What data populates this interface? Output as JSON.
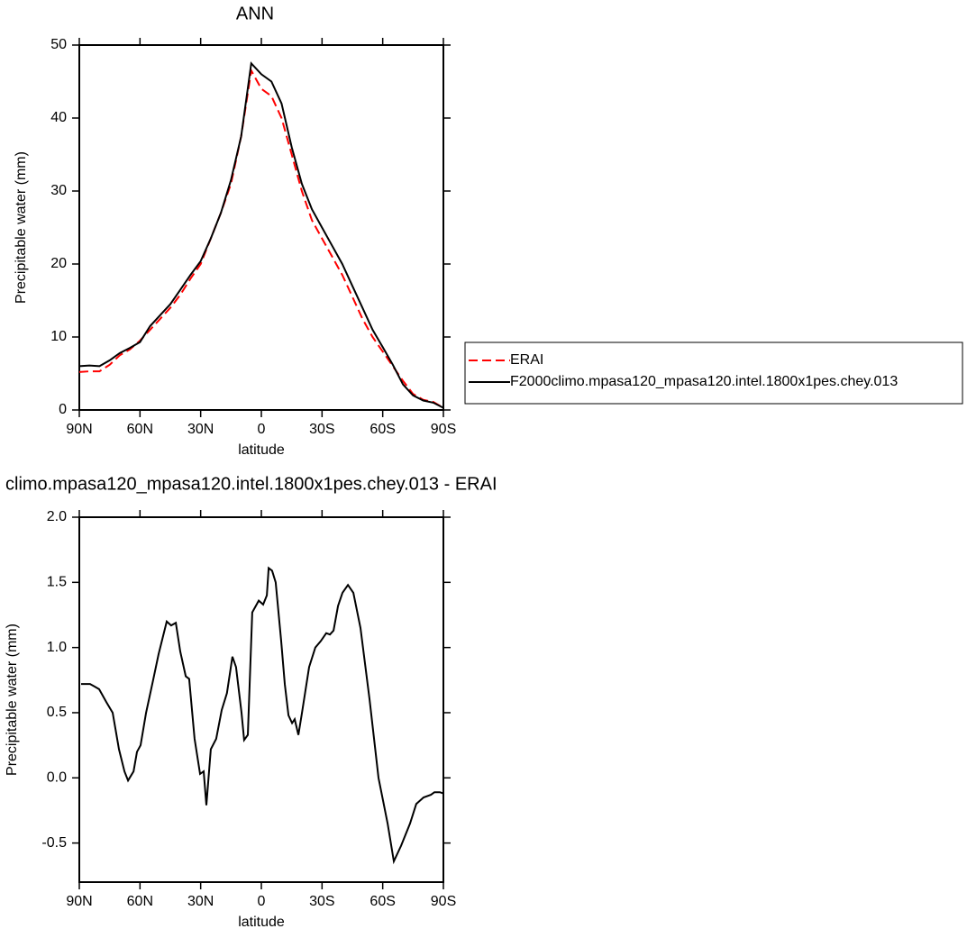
{
  "chart_data": [
    {
      "type": "line",
      "title": "ANN",
      "x_label": "latitude",
      "y_label": "Precipitable water (mm)",
      "x": [
        90,
        85,
        80,
        75,
        70,
        65,
        60,
        55,
        50,
        45,
        40,
        35,
        30,
        25,
        20,
        15,
        10,
        5,
        0,
        -5,
        -10,
        -15,
        -20,
        -25,
        -30,
        -35,
        -40,
        -45,
        -50,
        -55,
        -60,
        -65,
        -70,
        -75,
        -80,
        -85,
        -90
      ],
      "series": [
        {
          "name": "ERAI",
          "color": "#ff0000",
          "dash": true,
          "values": [
            5.2,
            5.3,
            5.3,
            6.2,
            7.5,
            8.3,
            9.5,
            11,
            12.5,
            14,
            15.8,
            18,
            20,
            23.5,
            27,
            31,
            37.5,
            46.5,
            44,
            43,
            40,
            35,
            30,
            26,
            23.5,
            21,
            18.5,
            15.5,
            12.5,
            10,
            8,
            6,
            4,
            2.2,
            1.4,
            1.1,
            0.3
          ]
        },
        {
          "name": "F2000climo.mpasa120_mpasa120.intel.1800x1pes.chey.013",
          "color": "#000000",
          "dash": false,
          "values": [
            6.0,
            6.1,
            6.0,
            6.8,
            7.8,
            8.5,
            9.3,
            11.5,
            13,
            14.5,
            16.5,
            18.5,
            20.4,
            23.5,
            27,
            31.5,
            37.5,
            47.5,
            46,
            45,
            42,
            36,
            31,
            27.5,
            25,
            22.5,
            20,
            17,
            14,
            11,
            8.6,
            6.2,
            3.5,
            2,
            1.3,
            1.0,
            0.3
          ]
        }
      ],
      "xlim": [
        90,
        -90
      ],
      "xticks": [
        {
          "value": 90,
          "label": "90N"
        },
        {
          "value": 60,
          "label": "60N"
        },
        {
          "value": 30,
          "label": "30N"
        },
        0,
        {
          "value": -30,
          "label": "30S"
        },
        {
          "value": -60,
          "label": "60S"
        },
        {
          "value": -90,
          "label": "90S"
        }
      ],
      "ylim": [
        0,
        50
      ],
      "yticks": [
        0,
        10,
        20,
        30,
        40,
        50
      ],
      "legend": "right"
    },
    {
      "type": "line",
      "title": "climo.mpasa120_mpasa120.intel.1800x1pes.chey.013 - ERAI",
      "x_label": "latitude",
      "y_label": "Precipitable water (mm)",
      "x": [
        89.1,
        84.7,
        82.4,
        80.2,
        76.6,
        73.5,
        72.2,
        70.4,
        67.7,
        65.9,
        63.2,
        61.5,
        59.7,
        57.0,
        53.5,
        50.8,
        46.8,
        44.6,
        42.3,
        40.1,
        37.4,
        35.7,
        33.0,
        30.3,
        28.5,
        27.2,
        25.0,
        22.3,
        19.6,
        17.0,
        14.3,
        12.5,
        9.8,
        8.5,
        6.7,
        4.5,
        1.3,
        -0.9,
        -2.7,
        -3.6,
        -5.3,
        -7.1,
        -9.8,
        -11.6,
        -13.4,
        -15.2,
        -16.5,
        -18.3,
        -20.1,
        -23.6,
        -26.7,
        -29.4,
        -32.1,
        -33.9,
        -35.7,
        -37.9,
        -40.1,
        -42.8,
        -45.5,
        -49.0,
        -53.5,
        -57.9,
        -62.4,
        -65.5,
        -69.1,
        -73.5,
        -76.6,
        -80.2,
        -83.8,
        -85.6,
        -88.2,
        -90.0
      ],
      "values": [
        0.72,
        0.72,
        0.7,
        0.68,
        0.58,
        0.5,
        0.38,
        0.22,
        0.05,
        -0.02,
        0.05,
        0.2,
        0.25,
        0.5,
        0.75,
        0.95,
        1.2,
        1.17,
        1.19,
        0.97,
        0.78,
        0.76,
        0.3,
        0.03,
        0.05,
        -0.21,
        0.22,
        0.3,
        0.52,
        0.65,
        0.93,
        0.85,
        0.5,
        0.29,
        0.33,
        1.27,
        1.36,
        1.33,
        1.4,
        1.61,
        1.59,
        1.5,
        1.05,
        0.72,
        0.48,
        0.42,
        0.45,
        0.33,
        0.5,
        0.85,
        1.0,
        1.05,
        1.11,
        1.1,
        1.13,
        1.32,
        1.42,
        1.48,
        1.42,
        1.15,
        0.6,
        0.0,
        -0.35,
        -0.64,
        -0.52,
        -0.35,
        -0.2,
        -0.15,
        -0.13,
        -0.11,
        -0.11,
        -0.12
      ],
      "color": "#000000",
      "xlim": [
        90,
        -90
      ],
      "xticks": [
        {
          "value": 90,
          "label": "90N"
        },
        {
          "value": 60,
          "label": "60N"
        },
        {
          "value": 30,
          "label": "30N"
        },
        0,
        {
          "value": -30,
          "label": "30S"
        },
        {
          "value": -60,
          "label": "60S"
        },
        {
          "value": -90,
          "label": "90S"
        }
      ],
      "ylim": [
        -0.8,
        2.0
      ],
      "yticks": [
        {
          "value": 2,
          "label": "2.0"
        },
        1.5,
        {
          "value": 1,
          "label": "1.0"
        },
        0.5,
        {
          "value": 0,
          "label": "0.0"
        },
        -0.5
      ]
    }
  ]
}
